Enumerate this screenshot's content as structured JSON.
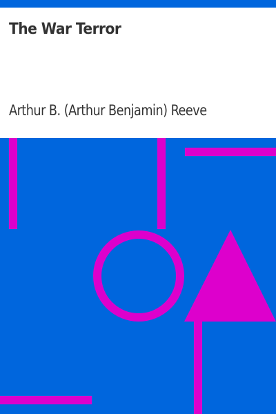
{
  "cover": {
    "title": "The War Terror",
    "author": "Arthur B. (Arthur Benjamin) Reeve"
  },
  "colors": {
    "accent_blue": "#0066dd",
    "shape_magenta": "#dd00cc",
    "text": "#333333",
    "background": "#ffffff"
  }
}
